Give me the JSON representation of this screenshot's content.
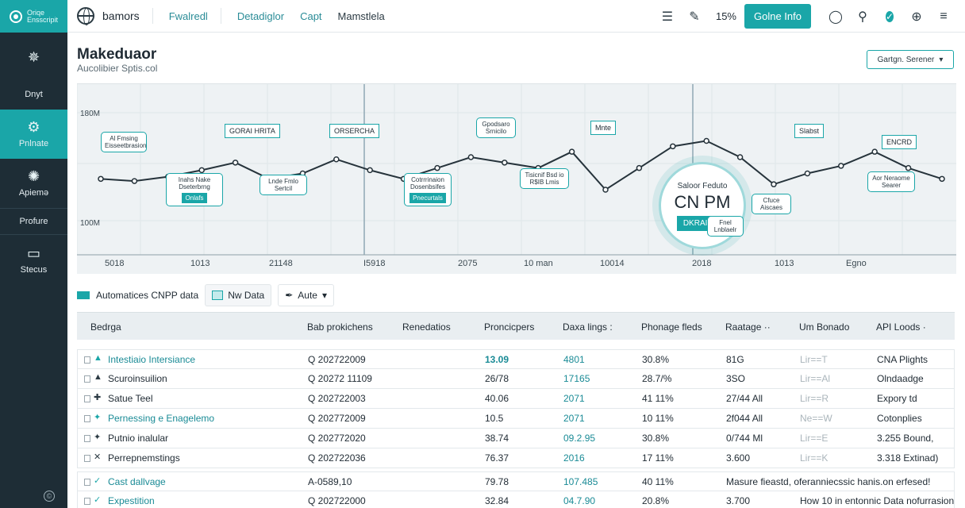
{
  "sidebar": {
    "brand_line1": "Oriqe",
    "brand_line2": "Ensscripit",
    "items": [
      {
        "label": "Dnyt",
        "icon": "tree-icon"
      },
      {
        "label": "Pnlnate",
        "icon": "gear-icon"
      },
      {
        "label": "Apiemə",
        "icon": "settings-icon"
      },
      {
        "label": "Profure",
        "icon": ""
      },
      {
        "label": "Stecus",
        "icon": "monitor-icon"
      }
    ],
    "footer_icon": "©"
  },
  "topbar": {
    "brand": "bamors",
    "nav": [
      "Fwalredl",
      "Detadiglor",
      "Capt",
      "Mamstlela"
    ],
    "zoom": "15%",
    "primary_button": "Golne Info",
    "icons": [
      "list-icon",
      "pencil-icon",
      "user-icon",
      "location-pin-icon",
      "check-icon",
      "globe-icon",
      "menu-icon"
    ]
  },
  "page": {
    "title": "Makeduaor",
    "subtitle": "Aucolibier Sptis.col",
    "select_value": "Gartgn. Serener"
  },
  "chart_data": {
    "type": "line",
    "yticks": [
      "180M",
      "100M"
    ],
    "xticks": [
      "5018",
      "1013",
      "21148",
      "I5918",
      "2075",
      "10 man",
      "10014",
      "2018",
      "1013",
      "Egno"
    ],
    "values": [
      150,
      148,
      152,
      158,
      165,
      150,
      155,
      168,
      158,
      150,
      160,
      170,
      165,
      160,
      175,
      140,
      160,
      180,
      185,
      170,
      145,
      155,
      162,
      175,
      160,
      150
    ],
    "ylim": [
      80,
      230
    ],
    "annotations": [
      {
        "text": "Al Fmsing Eisseetbrasion",
        "tag": ""
      },
      {
        "text": "Inahs Nake Dseterbrng",
        "tag": "Onlafs"
      },
      {
        "text": "Lnde Fmlo Sertcil",
        "tag": ""
      },
      {
        "text": "Cotrrrinaion Dosenbsifes",
        "tag": "Pnecurtals"
      },
      {
        "text": "Gpodsaro Srnicilo",
        "tag": ""
      },
      {
        "text": "Tisicnif Bsd io R$IB Lmis",
        "tag": ""
      },
      {
        "text": "Fnel Lnblaelr",
        "tag": ""
      },
      {
        "text": "Cfuce Aiscaes",
        "tag": ""
      },
      {
        "text": "Aor Neraome Searer",
        "tag": ""
      }
    ],
    "tags": [
      "GORAI HRITA",
      "ORSERCHA",
      "Mnte",
      "Slabst",
      "ENCRD"
    ],
    "highlight": {
      "line1": "Saloor Feduto",
      "line2": "CN PM",
      "tag": "DKRAI PM"
    }
  },
  "filters": {
    "label": "Automatices CNPP data",
    "chip1": "Nw Data",
    "chip2": "Aute"
  },
  "table": {
    "headers": [
      "Bedrga",
      "Bab prokichens",
      "Renedatios",
      "Proncicpers",
      "Daxa lings :",
      "Phonage fleds",
      "Raatage ··",
      "Um Bonado",
      "API Loods ·"
    ],
    "rows": [
      {
        "icon": "▲",
        "name": "Intestiaio Intersiance",
        "id": "Q 202722009",
        "a": "13.09",
        "b": "4801",
        "c": "30.8%",
        "d": "81G",
        "e": "Lir==T",
        "f": "CNA Plights",
        "teal": true
      },
      {
        "icon": "▲",
        "name": "Scuroinsuilion",
        "id": "Q 20272 11109",
        "a": "26/78",
        "b": "17165",
        "c": "28.7/%",
        "d": "3SO",
        "e": "Lir==Al",
        "f": "Olndaadge",
        "teal": false
      },
      {
        "icon": "✚",
        "name": "Satue Teel",
        "id": "Q 202722003",
        "a": "40.06",
        "b": "2071",
        "c": "41 11%",
        "d": "27/44 All",
        "e": "Lir==R",
        "f": "Expory td",
        "teal": false
      },
      {
        "icon": "✦",
        "name": "Pernessing e Enagelemo",
        "id": "Q 202772009",
        "a": "10.5",
        "b": "2071",
        "c": "10 11%",
        "d": "2f044 All",
        "e": "Ne==W",
        "f": "Cotonplies",
        "teal": true
      },
      {
        "icon": "✦",
        "name": "Putnio inalular",
        "id": "Q 202772020",
        "a": "38.74",
        "b": "09.2.95",
        "c": "30.8%",
        "d": "0/744 Ml",
        "e": "Lir==E",
        "f": "3.255 Bound,",
        "teal": false
      },
      {
        "icon": "✕",
        "name": "Perrepnemstings",
        "id": "Q 202722036",
        "a": "76.37",
        "b": "2016",
        "c": "17 11%",
        "d": "3.600",
        "e": "Lir==K",
        "f": "3.318 Extinad)",
        "teal": false
      },
      {
        "icon": "✓",
        "name": "Cast dallvage",
        "id": "A-0589,10",
        "a": "79.78",
        "b": "107.485",
        "c": "40 11%",
        "d": "Masure fieastd, oferanniecssic hanis.on erfesed!",
        "e": "",
        "f": "",
        "teal": true
      },
      {
        "icon": "✓",
        "name": "Expestition",
        "id": "Q 202722000",
        "a": "32.84",
        "b": "04.7.90",
        "c": "20.8%",
        "d": "3.700",
        "e": "How 10 in entonnic Data nofurrasion",
        "f": "",
        "teal": true
      }
    ]
  }
}
